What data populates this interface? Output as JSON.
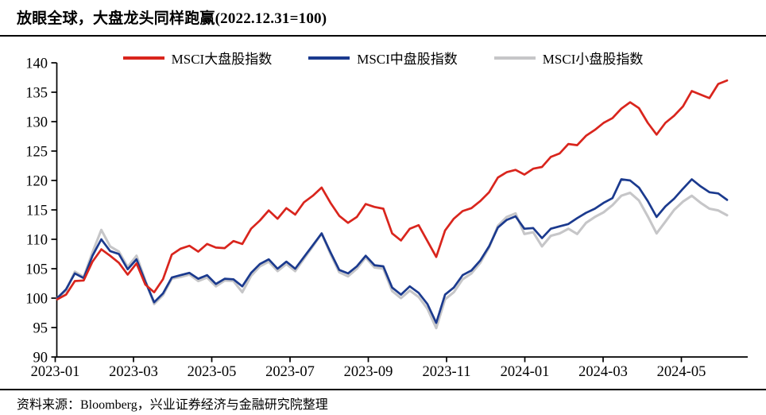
{
  "header": {
    "title": "放眼全球，大盘龙头同样跑赢(2022.12.31=100)"
  },
  "footer": {
    "source": "资料来源：Bloomberg，兴业证券经济与金融研究院整理"
  },
  "chart_data": {
    "type": "line",
    "title": "放眼全球，大盘龙头同样跑赢(2022.12.31=100)",
    "baseline_note": "2022.12.31=100",
    "xlabel": "",
    "ylabel": "",
    "ylim": [
      90,
      140
    ],
    "y_ticks": [
      90,
      95,
      100,
      105,
      110,
      115,
      120,
      125,
      130,
      135,
      140
    ],
    "x_tick_labels": [
      "2023-01",
      "2023-03",
      "2023-05",
      "2023-07",
      "2023-09",
      "2023-11",
      "2024-01",
      "2024-03",
      "2024-05"
    ],
    "x_start": "2023-01-01",
    "x_end": "2024-06-07",
    "interval": "weekly",
    "grid": false,
    "legend_position": "top",
    "series": [
      {
        "name": "MSCI大盘股指数",
        "color": "#d9251d",
        "values": [
          99.8,
          100.6,
          102.9,
          103.0,
          106.2,
          108.3,
          107.2,
          106.0,
          104.0,
          105.9,
          102.3,
          101.0,
          103.2,
          107.4,
          108.4,
          108.9,
          107.9,
          109.2,
          108.6,
          108.5,
          109.7,
          109.2,
          111.8,
          113.2,
          114.9,
          113.5,
          115.3,
          114.2,
          116.3,
          117.4,
          118.8,
          116.2,
          114.0,
          112.8,
          113.8,
          116.0,
          115.5,
          115.2,
          111.0,
          109.8,
          111.8,
          112.4,
          109.7,
          107.0,
          111.5,
          113.5,
          114.8,
          115.3,
          116.5,
          118.0,
          120.5,
          121.4,
          121.8,
          121.0,
          122.0,
          122.3,
          124.0,
          124.6,
          126.2,
          126.0,
          127.6,
          128.6,
          129.8,
          130.6,
          132.2,
          133.3,
          132.3,
          129.8,
          127.8,
          129.8,
          131.0,
          132.6,
          135.2,
          134.6,
          134.0,
          136.4,
          137.0
        ]
      },
      {
        "name": "MSCI中盘股指数",
        "color": "#1b3a8e",
        "values": [
          100.0,
          101.5,
          104.2,
          103.4,
          107.2,
          110.0,
          108.0,
          107.5,
          104.9,
          106.6,
          102.8,
          99.3,
          100.8,
          103.5,
          103.9,
          104.3,
          103.3,
          103.9,
          102.4,
          103.3,
          103.2,
          102.0,
          104.3,
          105.8,
          106.6,
          105.0,
          106.2,
          105.0,
          107.0,
          109.0,
          111.0,
          107.8,
          104.8,
          104.2,
          105.4,
          107.2,
          105.6,
          105.4,
          101.8,
          100.6,
          102.0,
          100.9,
          99.0,
          95.8,
          100.6,
          101.8,
          103.9,
          104.7,
          106.4,
          108.8,
          112.0,
          113.3,
          113.9,
          111.8,
          111.9,
          110.2,
          111.8,
          112.2,
          112.6,
          113.6,
          114.5,
          115.2,
          116.2,
          117.0,
          120.2,
          120.0,
          118.8,
          116.5,
          113.8,
          115.6,
          116.9,
          118.6,
          120.2,
          119.0,
          118.0,
          117.8,
          116.7
        ]
      },
      {
        "name": "MSCI小盘股指数",
        "color": "#c6c6c8",
        "values": [
          100.0,
          101.3,
          104.5,
          103.6,
          107.8,
          111.6,
          108.8,
          107.9,
          105.3,
          107.2,
          103.0,
          99.0,
          100.5,
          103.3,
          103.6,
          104.0,
          102.9,
          103.5,
          102.0,
          103.0,
          102.9,
          101.0,
          103.8,
          105.4,
          106.2,
          104.6,
          105.8,
          104.6,
          106.7,
          108.8,
          111.0,
          107.5,
          104.4,
          103.7,
          105.0,
          106.9,
          105.2,
          105.0,
          101.2,
          100.0,
          101.3,
          100.2,
          98.2,
          94.9,
          99.8,
          101.0,
          103.2,
          104.2,
          106.0,
          108.6,
          112.3,
          113.8,
          114.4,
          110.9,
          111.2,
          108.8,
          110.6,
          111.0,
          111.8,
          110.9,
          112.8,
          113.8,
          114.6,
          115.8,
          117.4,
          117.9,
          116.6,
          113.9,
          111.0,
          113.0,
          115.0,
          116.4,
          117.4,
          116.2,
          115.2,
          114.9,
          114.1
        ]
      }
    ]
  }
}
